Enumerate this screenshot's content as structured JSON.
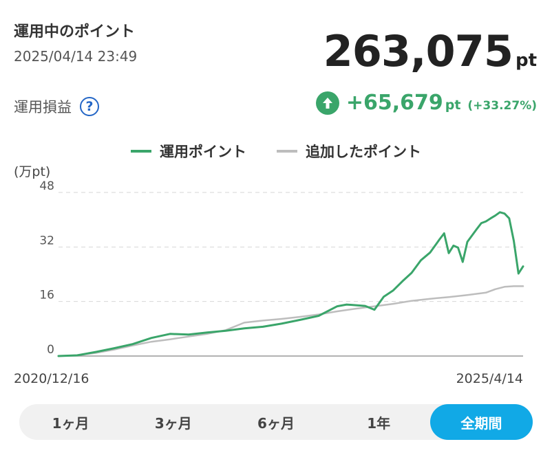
{
  "header": {
    "title": "運用中のポイント",
    "timestamp": "2025/04/14 23:49",
    "points_value": "263,075",
    "points_unit": "pt"
  },
  "profit": {
    "label": "運用損益",
    "help_icon": "question-icon",
    "arrow_icon": "arrow-up-icon",
    "value": "+65,679",
    "unit": "pt",
    "percent": "(+33.27%)"
  },
  "colors": {
    "accent": "#3aa56a",
    "added": "#bdbdbd",
    "tab_active": "#11a9e6",
    "help": "#2466c6"
  },
  "chart_data": {
    "type": "line",
    "unit_label": "(万pt)",
    "yticks": [
      "48",
      "32",
      "16",
      "0"
    ],
    "ylim": [
      0,
      48
    ],
    "x_start_label": "2020/12/16",
    "x_end_label": "2025/4/14",
    "legend_position": "top-center",
    "grid": true,
    "series": [
      {
        "name": "運用ポイント",
        "color": "#3aa56a",
        "x": [
          0,
          0.04,
          0.08,
          0.12,
          0.16,
          0.2,
          0.24,
          0.28,
          0.32,
          0.36,
          0.4,
          0.44,
          0.48,
          0.52,
          0.56,
          0.6,
          0.62,
          0.66,
          0.68,
          0.7,
          0.72,
          0.74,
          0.76,
          0.78,
          0.8,
          0.82,
          0.83,
          0.84,
          0.85,
          0.86,
          0.87,
          0.88,
          0.9,
          0.91,
          0.92,
          0.93,
          0.94,
          0.95,
          0.96,
          0.97,
          0.98,
          0.99,
          1.0
        ],
        "y": [
          0,
          0.2,
          1.2,
          2.3,
          3.5,
          5.3,
          6.5,
          6.3,
          6.9,
          7.4,
          8.1,
          8.6,
          9.5,
          10.6,
          11.8,
          14.6,
          15.1,
          14.7,
          13.6,
          17.4,
          19.2,
          21.9,
          24.4,
          28.1,
          30.4,
          34.2,
          36.0,
          30.2,
          32.4,
          31.8,
          27.6,
          33.5,
          37.2,
          39.0,
          39.5,
          40.4,
          41.2,
          42.2,
          41.8,
          40.4,
          33.8,
          24.2,
          26.3
        ]
      },
      {
        "name": "追加したポイント",
        "color": "#bdbdbd",
        "x": [
          0,
          0.04,
          0.08,
          0.12,
          0.16,
          0.2,
          0.24,
          0.28,
          0.32,
          0.36,
          0.4,
          0.44,
          0.48,
          0.52,
          0.56,
          0.6,
          0.64,
          0.68,
          0.72,
          0.76,
          0.8,
          0.84,
          0.88,
          0.92,
          0.94,
          0.96,
          0.98,
          1.0
        ],
        "y": [
          0,
          0.2,
          0.9,
          1.9,
          3.1,
          4.2,
          4.9,
          5.7,
          6.5,
          7.6,
          9.8,
          10.4,
          10.9,
          11.5,
          12.2,
          13.1,
          13.9,
          14.6,
          15.3,
          16.2,
          16.8,
          17.3,
          17.9,
          18.6,
          19.6,
          20.3,
          20.5,
          20.5
        ]
      }
    ]
  },
  "tabs": [
    {
      "label": "1ヶ月",
      "active": false
    },
    {
      "label": "3ヶ月",
      "active": false
    },
    {
      "label": "6ヶ月",
      "active": false
    },
    {
      "label": "1年",
      "active": false
    },
    {
      "label": "全期間",
      "active": true
    }
  ]
}
